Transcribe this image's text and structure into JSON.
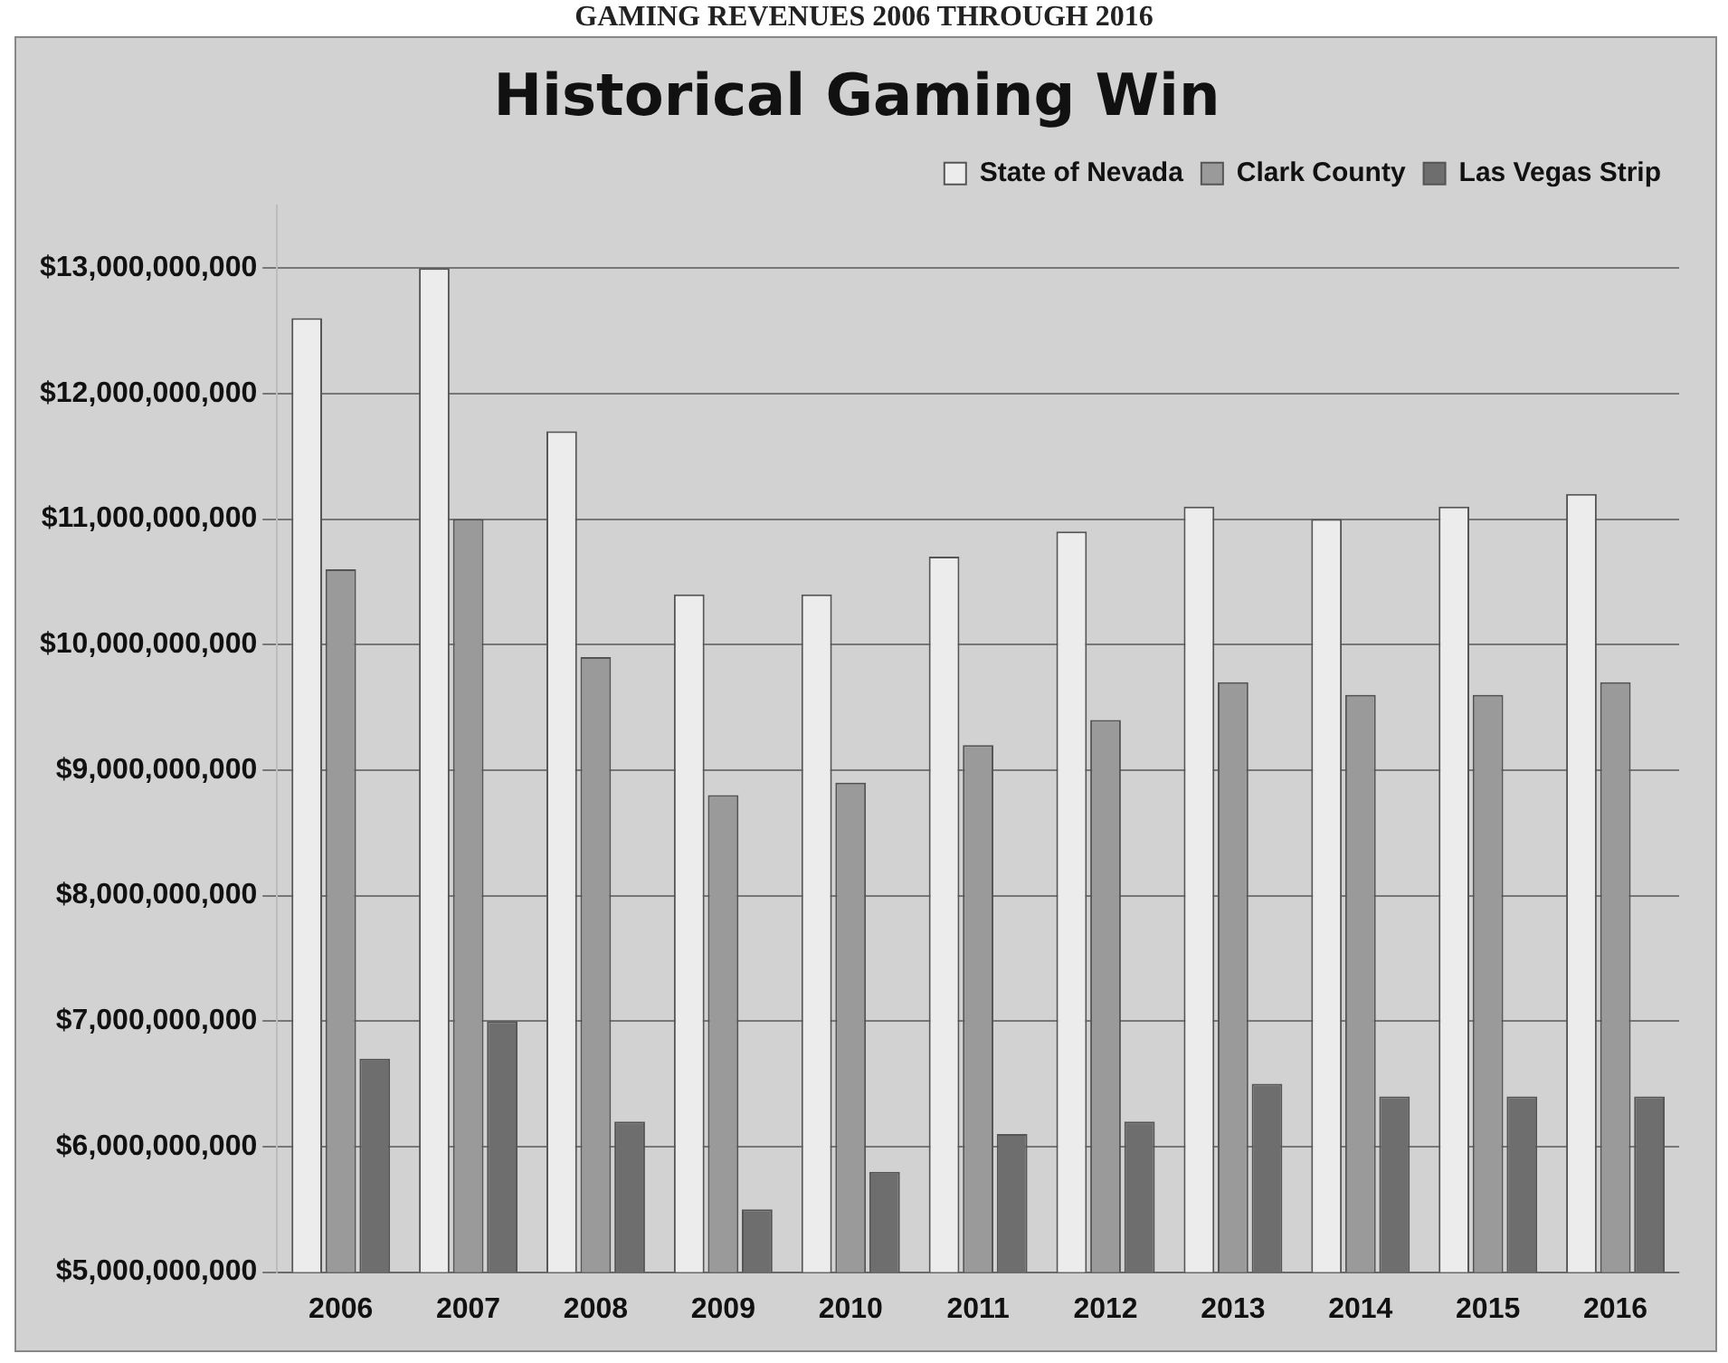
{
  "chart_data": {
    "type": "bar",
    "title": "Historical Gaming Win",
    "annotations": [
      "GAMING REVENUES 2006 THROUGH 2016"
    ],
    "categories": [
      "2006",
      "2007",
      "2008",
      "2009",
      "2010",
      "2011",
      "2012",
      "2013",
      "2014",
      "2015",
      "2016"
    ],
    "series": [
      {
        "name": "State of Nevada",
        "color": "#ececec",
        "values": [
          12600000000,
          13000000000,
          11700000000,
          10400000000,
          10400000000,
          10700000000,
          10900000000,
          11100000000,
          11000000000,
          11100000000,
          11200000000
        ]
      },
      {
        "name": "Clark County",
        "color": "#9a9a9a",
        "values": [
          10600000000,
          11000000000,
          9900000000,
          8800000000,
          8900000000,
          9200000000,
          9400000000,
          9700000000,
          9600000000,
          9600000000,
          9700000000
        ]
      },
      {
        "name": "Las Vegas Strip",
        "color": "#6e6e6e",
        "values": [
          6700000000,
          7000000000,
          6200000000,
          5500000000,
          5800000000,
          6100000000,
          6200000000,
          6500000000,
          6400000000,
          6400000000,
          6400000000
        ]
      }
    ],
    "ylim": [
      5000000000,
      13500000000
    ],
    "yticks": [
      {
        "value": 5000000000,
        "label": "$5,000,000,000"
      },
      {
        "value": 6000000000,
        "label": "$6,000,000,000"
      },
      {
        "value": 7000000000,
        "label": "$7,000,000,000"
      },
      {
        "value": 8000000000,
        "label": "$8,000,000,000"
      },
      {
        "value": 9000000000,
        "label": "$9,000,000,000"
      },
      {
        "value": 10000000000,
        "label": "$10,000,000,000"
      },
      {
        "value": 11000000000,
        "label": "$11,000,000,000"
      },
      {
        "value": 12000000000,
        "label": "$12,000,000,000"
      },
      {
        "value": 13000000000,
        "label": "$13,000,000,000"
      }
    ],
    "grid": "y",
    "legend": "top right"
  }
}
